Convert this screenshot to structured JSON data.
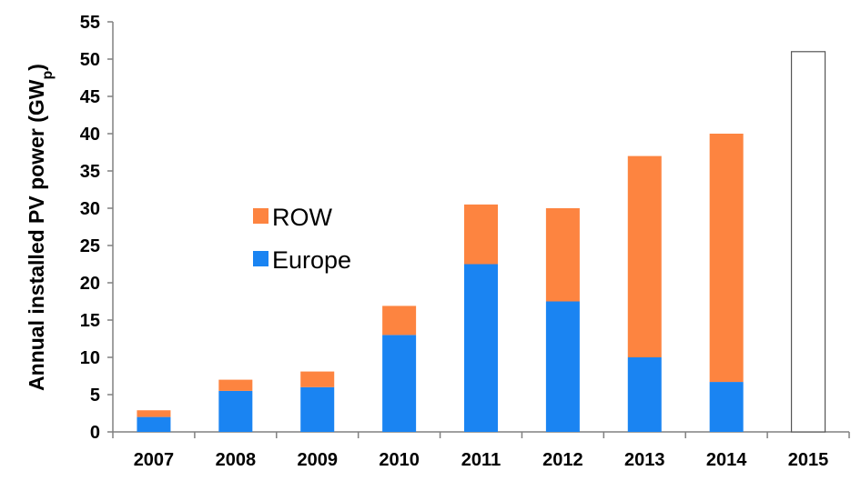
{
  "chart_data": {
    "type": "bar",
    "stacked": true,
    "categories": [
      "2007",
      "2008",
      "2009",
      "2010",
      "2011",
      "2012",
      "2013",
      "2014",
      "2015"
    ],
    "series": [
      {
        "name": "Europe",
        "color": "#1a84f2",
        "values": [
          2.0,
          5.5,
          6.0,
          13.0,
          22.5,
          17.5,
          10.0,
          6.7,
          null
        ]
      },
      {
        "name": "ROW",
        "color": "#fd8440",
        "values": [
          0.9,
          1.5,
          2.1,
          3.9,
          8.0,
          12.5,
          27.0,
          33.3,
          null
        ]
      }
    ],
    "empty_bar": {
      "category": "2015",
      "value": 51,
      "fill": "#ffffff",
      "stroke": "#555555"
    },
    "ylabel_main": "Annual installed PV power (GW",
    "ylabel_sub": "p",
    "ylabel_close": ")",
    "ylim": [
      0,
      55
    ],
    "yticks": [
      "0",
      "5",
      "10",
      "15",
      "20",
      "25",
      "30",
      "35",
      "40",
      "45",
      "50",
      "55"
    ],
    "grid": false,
    "legend": {
      "placement": "center-left",
      "items": [
        {
          "label": "ROW",
          "color": "#fd8440"
        },
        {
          "label": "Europe",
          "color": "#1a84f2"
        }
      ]
    }
  }
}
